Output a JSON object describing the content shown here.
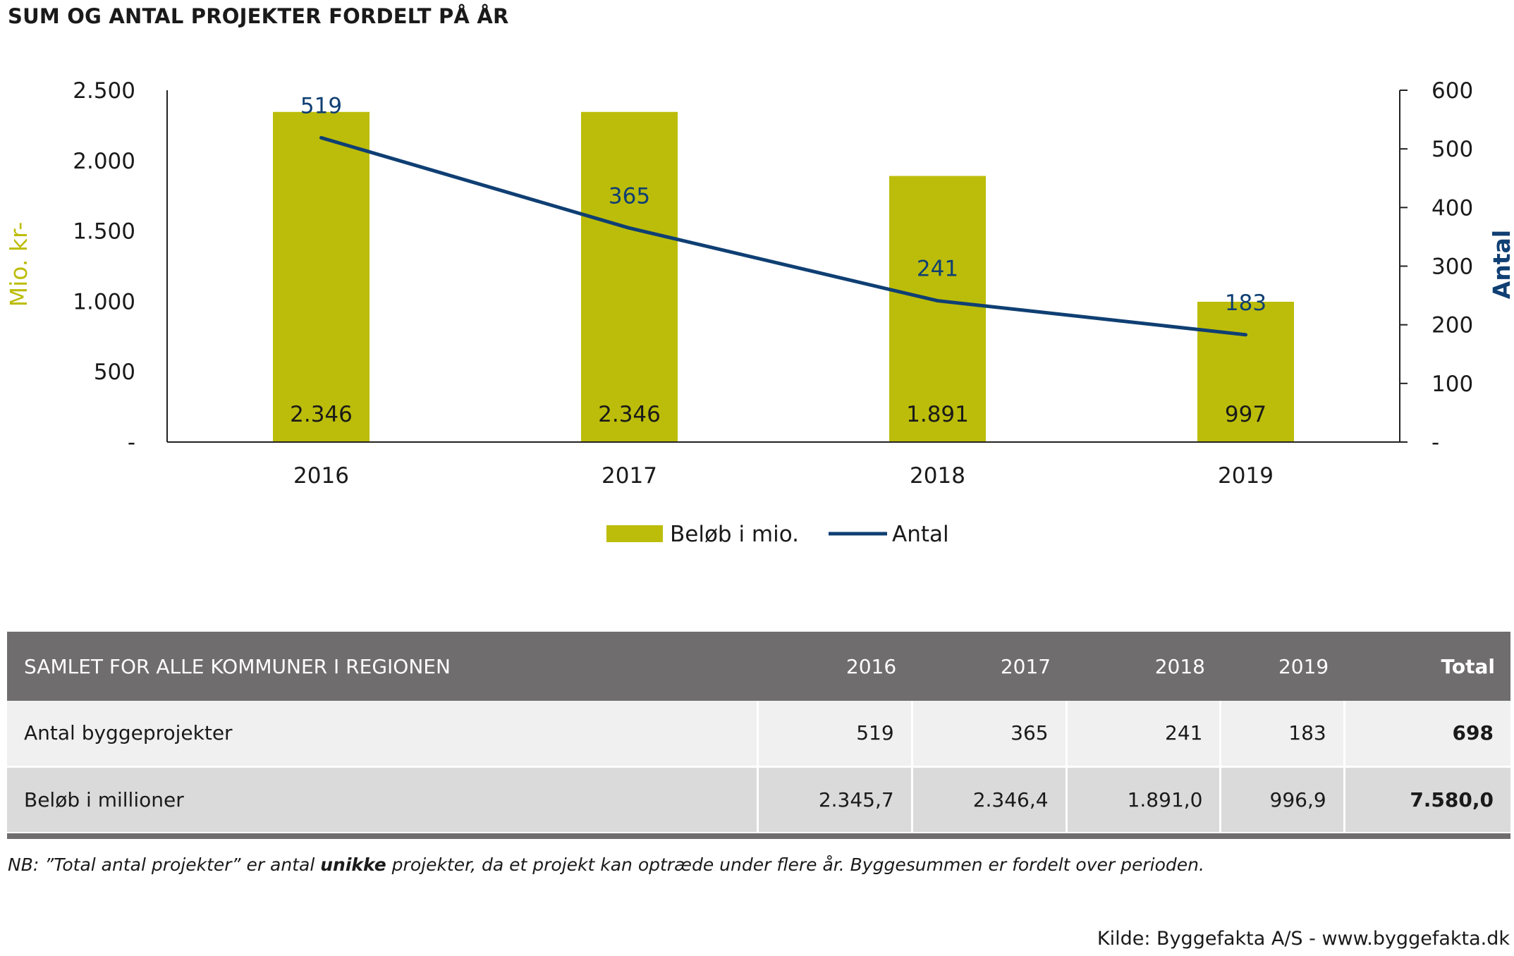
{
  "title": "SUM OG ANTAL PROJEKTER FORDELT PÅ ÅR",
  "colors": {
    "bar": "#bcbd0a",
    "line": "#0f3f73",
    "header_bg": "#6f6d6d"
  },
  "chart_data": {
    "type": "bar+line",
    "categories": [
      "2016",
      "2017",
      "2018",
      "2019"
    ],
    "series": [
      {
        "name": "Beløb i mio.",
        "type": "bar",
        "axis": "left",
        "values": [
          2346,
          2346,
          1891,
          997
        ],
        "labels": [
          "2.346",
          "2.346",
          "1.891",
          "997"
        ]
      },
      {
        "name": "Antal",
        "type": "line",
        "axis": "right",
        "values": [
          519,
          365,
          241,
          183
        ],
        "labels": [
          "519",
          "365",
          "241",
          "183"
        ]
      }
    ],
    "ylabel_left": "Mio. kr-",
    "ylabel_right": "Antal",
    "ylim_left": [
      0,
      2500
    ],
    "ylim_right": [
      0,
      600
    ],
    "yticks_left": [
      "-",
      "500",
      "1.000",
      "1.500",
      "2.000",
      "2.500"
    ],
    "yticks_right": [
      "-",
      "100",
      "200",
      "300",
      "400",
      "500",
      "600"
    ],
    "legend_position": "bottom"
  },
  "table": {
    "header": [
      "SAMLET FOR ALLE KOMMUNER I REGIONEN",
      "2016",
      "2017",
      "2018",
      "2019",
      "Total"
    ],
    "rows": [
      [
        "Antal byggeprojekter",
        "519",
        "365",
        "241",
        "183",
        "698"
      ],
      [
        "Beløb i millioner",
        "2.345,7",
        "2.346,4",
        "1.891,0",
        "996,9",
        "7.580,0"
      ]
    ]
  },
  "note": {
    "before": "NB: ”Total antal projekter” er antal ",
    "bold": "unikke",
    "after": " projekter, da et projekt kan optræde under flere år. Byggesummen er fordelt over perioden."
  },
  "source": "Kilde: Byggefakta A/S - www.byggefakta.dk"
}
